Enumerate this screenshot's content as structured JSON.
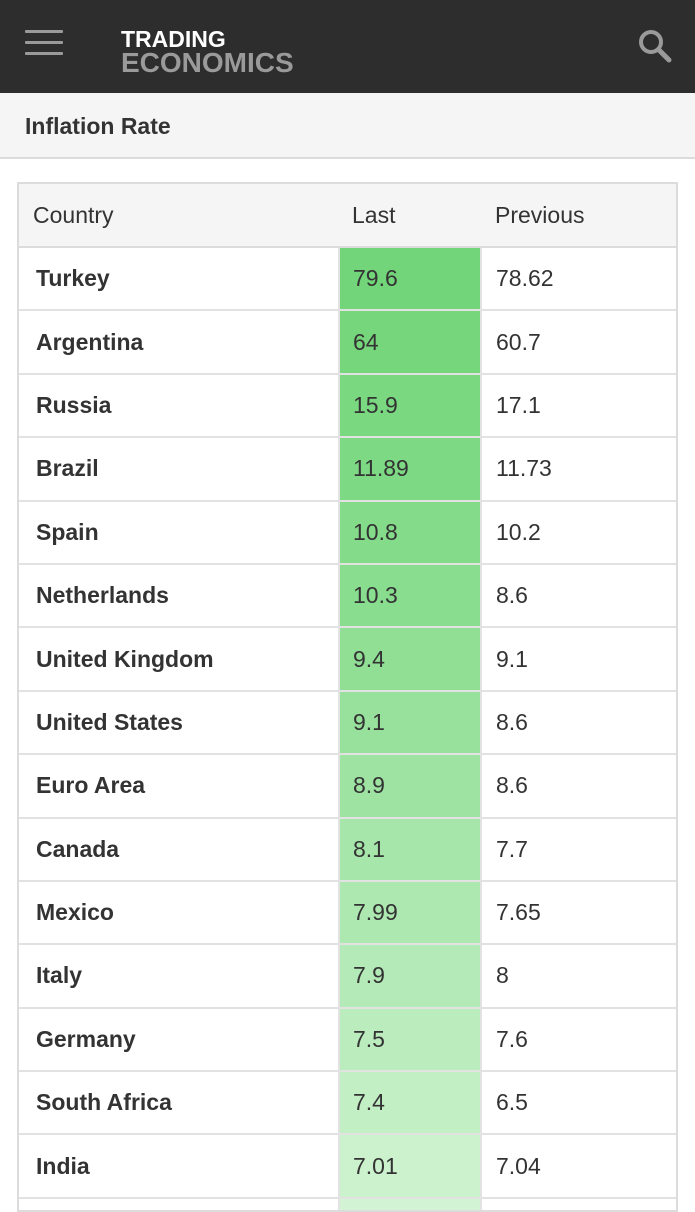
{
  "header": {
    "logo_line1": "TRADING",
    "logo_line2": "ECONOMICS",
    "menu_icon": "hamburger-menu-icon",
    "search_icon": "search-icon",
    "bar_color": "#2d2d2d"
  },
  "page": {
    "title": "Inflation Rate"
  },
  "table": {
    "columns": [
      "Country",
      "Last",
      "Previous"
    ],
    "rows": [
      {
        "country": "Turkey",
        "last": "79.6",
        "previous": "78.62",
        "heat": "#72d57a"
      },
      {
        "country": "Argentina",
        "last": "64",
        "previous": "60.7",
        "heat": "#75d67c"
      },
      {
        "country": "Russia",
        "last": "15.9",
        "previous": "17.1",
        "heat": "#7ad881"
      },
      {
        "country": "Brazil",
        "last": "11.89",
        "previous": "11.73",
        "heat": "#7ed984"
      },
      {
        "country": "Spain",
        "last": "10.8",
        "previous": "10.2",
        "heat": "#84db89"
      },
      {
        "country": "Netherlands",
        "last": "10.3",
        "previous": "8.6",
        "heat": "#89dd8e"
      },
      {
        "country": "United Kingdom",
        "last": "9.4",
        "previous": "9.1",
        "heat": "#90df95"
      },
      {
        "country": "United States",
        "last": "9.1",
        "previous": "8.6",
        "heat": "#98e19c"
      },
      {
        "country": "Euro Area",
        "last": "8.9",
        "previous": "8.6",
        "heat": "#9fe3a3"
      },
      {
        "country": "Canada",
        "last": "8.1",
        "previous": "7.7",
        "heat": "#a6e6aa"
      },
      {
        "country": "Mexico",
        "last": "7.99",
        "previous": "7.65",
        "heat": "#ade8b0"
      },
      {
        "country": "Italy",
        "last": "7.9",
        "previous": "8",
        "heat": "#b4eab7"
      },
      {
        "country": "Germany",
        "last": "7.5",
        "previous": "7.6",
        "heat": "#bbecbe"
      },
      {
        "country": "South Africa",
        "last": "7.4",
        "previous": "6.5",
        "heat": "#c3efc5"
      },
      {
        "country": "India",
        "last": "7.01",
        "previous": "7.04",
        "heat": "#cbf1cd"
      },
      {
        "country": "",
        "last": "",
        "previous": "",
        "heat": "#d2f3d4"
      }
    ]
  }
}
